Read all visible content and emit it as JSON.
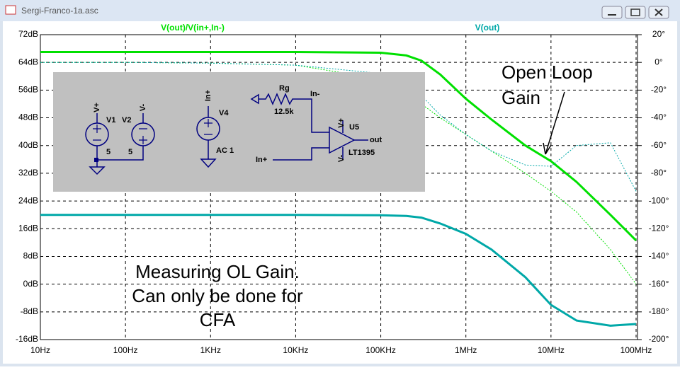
{
  "window": {
    "title": "Sergi-Franco-1a.asc"
  },
  "chart_data": {
    "type": "line",
    "x": [
      10,
      100,
      1000,
      10000,
      100000,
      200000,
      300000,
      500000,
      1000000,
      2000000,
      5000000,
      10000000,
      20000000,
      50000000,
      100000000
    ],
    "traces": [
      {
        "name": "V(out)/V(in+,In-)",
        "color": "#00e000",
        "magnitude": [
          67,
          67,
          67,
          67,
          66.8,
          66,
          64.5,
          60.5,
          53.5,
          47.5,
          40,
          35.5,
          29.5,
          20,
          12.6
        ],
        "phase": [
          0,
          0,
          -0.5,
          -2,
          -12,
          -22,
          -30,
          -40,
          -52,
          -64,
          -80,
          -93,
          -108,
          -135,
          -160
        ]
      },
      {
        "name": "V(out)",
        "color": "#00a8a8",
        "magnitude": [
          20,
          20,
          20,
          20,
          19.9,
          19.7,
          19.2,
          17.5,
          14.5,
          10,
          2,
          -6,
          -10.5,
          -12,
          -11.5
        ],
        "phase": [
          0,
          0,
          -0.5,
          -2,
          -8,
          -16,
          -24,
          -38,
          -52,
          -64,
          -74,
          -75,
          -60,
          -58,
          -93
        ]
      }
    ],
    "xscale": "log",
    "xlim": [
      10,
      100000000
    ],
    "xticks": [
      {
        "value": 10,
        "label": "10Hz"
      },
      {
        "value": 100,
        "label": "100Hz"
      },
      {
        "value": 1000,
        "label": "1KHz"
      },
      {
        "value": 10000,
        "label": "10KHz"
      },
      {
        "value": 100000,
        "label": "100KHz"
      },
      {
        "value": 1000000,
        "label": "1MHz"
      },
      {
        "value": 10000000,
        "label": "10MHz"
      },
      {
        "value": 100000000,
        "label": "100MHz"
      }
    ],
    "ylim": [
      -16,
      72
    ],
    "yticks": [
      {
        "value": 72,
        "label": "72dB"
      },
      {
        "value": 64,
        "label": "64dB"
      },
      {
        "value": 56,
        "label": "56dB"
      },
      {
        "value": 48,
        "label": "48dB"
      },
      {
        "value": 40,
        "label": "40dB"
      },
      {
        "value": 32,
        "label": "32dB"
      },
      {
        "value": 24,
        "label": "24dB"
      },
      {
        "value": 16,
        "label": "16dB"
      },
      {
        "value": 8,
        "label": "8dB"
      },
      {
        "value": 0,
        "label": "0dB"
      },
      {
        "value": -8,
        "label": "-8dB"
      },
      {
        "value": -16,
        "label": "-16dB"
      }
    ],
    "y2lim": [
      -200,
      20
    ],
    "y2ticks": [
      {
        "value": 20,
        "label": "20°"
      },
      {
        "value": 0,
        "label": "0°"
      },
      {
        "value": -20,
        "label": "-20°"
      },
      {
        "value": -40,
        "label": "-40°"
      },
      {
        "value": -60,
        "label": "-60°"
      },
      {
        "value": -80,
        "label": "-80°"
      },
      {
        "value": -100,
        "label": "-100°"
      },
      {
        "value": -120,
        "label": "-120°"
      },
      {
        "value": -140,
        "label": "-140°"
      },
      {
        "value": -160,
        "label": "-160°"
      },
      {
        "value": -180,
        "label": "-180°"
      },
      {
        "value": -200,
        "label": "-200°"
      }
    ],
    "grid": true,
    "annotations": [
      "Open Loop",
      "Gain",
      "Measuring OL Gain.",
      "Can only be done for",
      "CFA"
    ]
  },
  "schematic": {
    "labels": [
      "V+",
      "V1",
      "V2",
      "V-",
      "5",
      "5",
      "In+",
      "V4",
      "AC 1",
      "Rg",
      "12.5k",
      "In-",
      "U5",
      "out",
      "In+",
      "LT1395",
      "V+",
      "V-"
    ]
  }
}
